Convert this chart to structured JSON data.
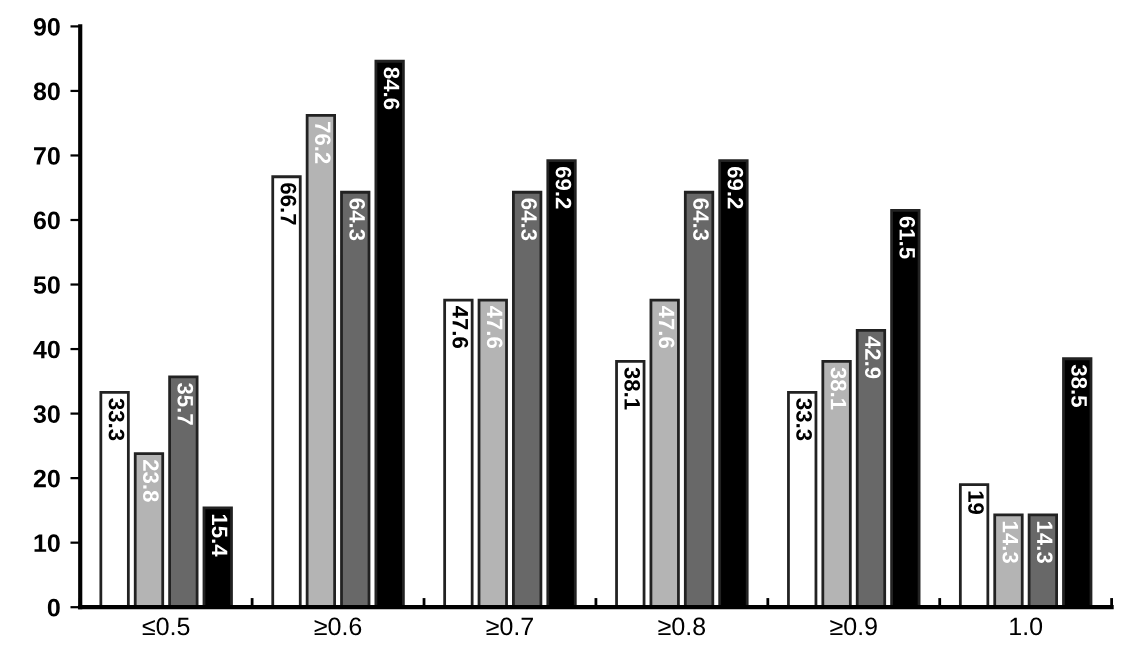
{
  "chart_data": {
    "type": "bar",
    "categories": [
      "≤0.5",
      "≥0.6",
      "≥0.7",
      "≥0.8",
      "≥0.9",
      "1.0"
    ],
    "series": [
      {
        "color": "#ffffff",
        "values": [
          33.3,
          66.7,
          47.6,
          38.1,
          33.3,
          19
        ]
      },
      {
        "color": "#b4b4b4",
        "values": [
          23.8,
          76.2,
          47.6,
          47.6,
          38.1,
          14.3
        ]
      },
      {
        "color": "#686868",
        "values": [
          35.7,
          64.3,
          64.3,
          64.3,
          42.9,
          14.3
        ]
      },
      {
        "color": "#000000",
        "values": [
          15.4,
          84.6,
          69.2,
          69.2,
          61.5,
          38.5
        ]
      }
    ],
    "ylim": [
      0,
      90
    ],
    "yticks": [
      0,
      10,
      20,
      30,
      40,
      50,
      60,
      70,
      80,
      90
    ],
    "grid": false,
    "legend": false,
    "data_labels": true
  }
}
